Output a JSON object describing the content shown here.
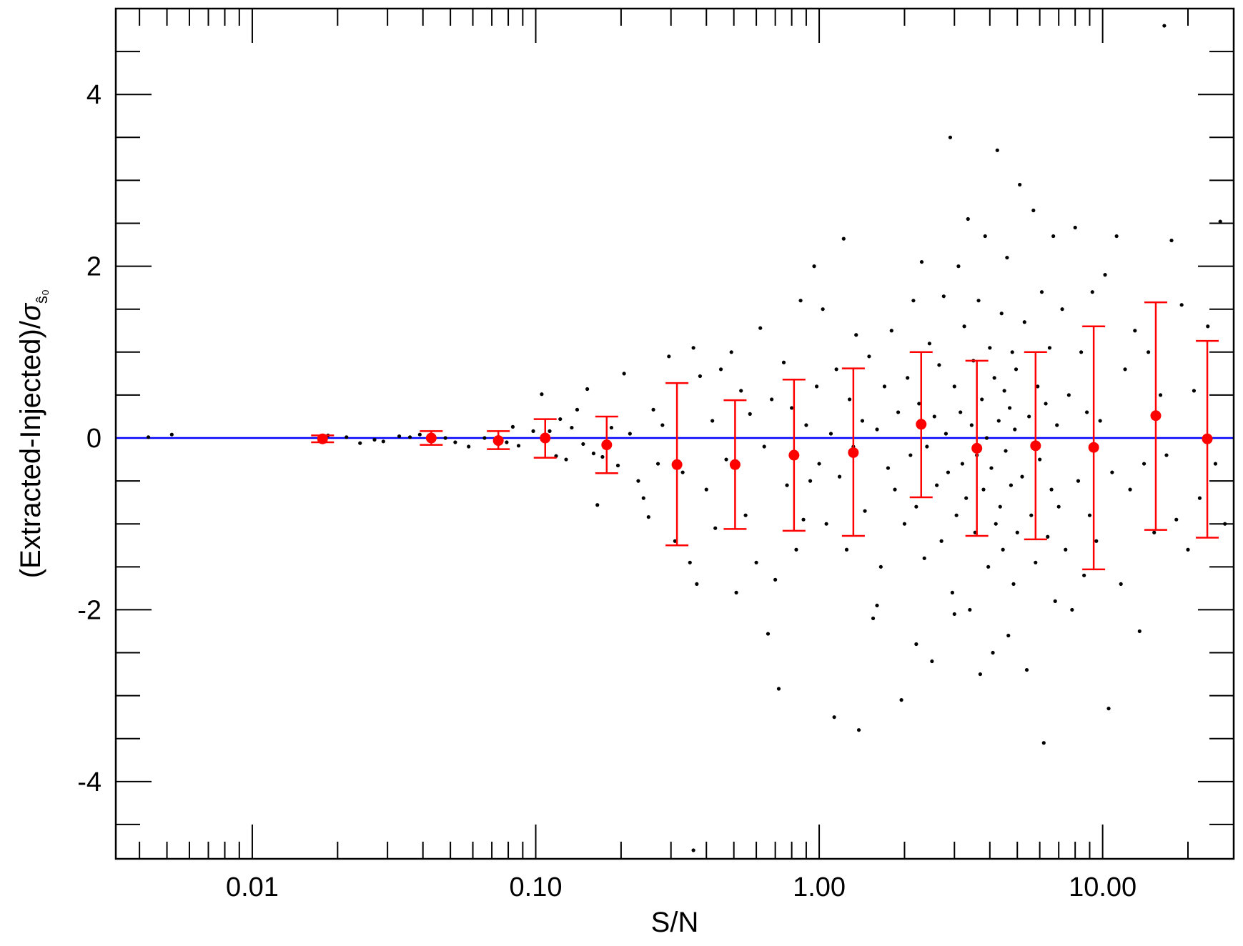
{
  "chart_data": {
    "type": "scatter",
    "xlabel": "S/N",
    "ylabel_main": "(Extracted-Injected)/",
    "ylabel_sigma": "σ",
    "ylabel_subscript": "ŝ₀",
    "x_scale": "log",
    "xlim": [
      0.0033,
      29
    ],
    "ylim": [
      -4.9,
      5.0
    ],
    "x_ticks": [
      {
        "value": 0.01,
        "label": "0.01"
      },
      {
        "value": 0.1,
        "label": "0.10"
      },
      {
        "value": 1,
        "label": "1.00"
      },
      {
        "value": 10,
        "label": "10.00"
      }
    ],
    "y_ticks": [
      {
        "value": 4,
        "label": "4"
      },
      {
        "value": 2,
        "label": "2"
      },
      {
        "value": 0,
        "label": "0"
      },
      {
        "value": -2,
        "label": "-2"
      },
      {
        "value": -4,
        "label": "-4"
      }
    ],
    "reference_line": {
      "y": 0,
      "color": "#0000ff"
    },
    "series": [
      {
        "kind": "scatter",
        "color": "#000000",
        "points": [
          [
            0.0043,
            0.01
          ],
          [
            0.0052,
            0.04
          ],
          [
            0.0175,
            0.0
          ],
          [
            0.0185,
            0.03
          ],
          [
            0.0215,
            0.01
          ],
          [
            0.024,
            -0.06
          ],
          [
            0.027,
            -0.02
          ],
          [
            0.029,
            -0.04
          ],
          [
            0.033,
            0.02
          ],
          [
            0.036,
            0.01
          ],
          [
            0.039,
            0.04
          ],
          [
            0.048,
            0.0
          ],
          [
            0.052,
            -0.05
          ],
          [
            0.058,
            -0.1
          ],
          [
            0.066,
            0.0
          ],
          [
            0.072,
            -0.03
          ],
          [
            0.079,
            -0.05
          ],
          [
            0.083,
            0.13
          ],
          [
            0.087,
            -0.09
          ],
          [
            0.098,
            0.08
          ],
          [
            0.105,
            0.51
          ],
          [
            0.112,
            0.08
          ],
          [
            0.118,
            -0.21
          ],
          [
            0.122,
            0.22
          ],
          [
            0.128,
            -0.25
          ],
          [
            0.134,
            0.12
          ],
          [
            0.14,
            0.33
          ],
          [
            0.147,
            -0.07
          ],
          [
            0.152,
            0.57
          ],
          [
            0.16,
            -0.18
          ],
          [
            0.165,
            -0.78
          ],
          [
            0.172,
            -0.22
          ],
          [
            0.185,
            0.12
          ],
          [
            0.195,
            -0.32
          ],
          [
            0.205,
            0.75
          ],
          [
            0.215,
            0.05
          ],
          [
            0.23,
            -0.5
          ],
          [
            0.24,
            -0.7
          ],
          [
            0.25,
            -0.92
          ],
          [
            0.26,
            0.33
          ],
          [
            0.27,
            -0.3
          ],
          [
            0.28,
            0.15
          ],
          [
            0.295,
            0.95
          ],
          [
            0.31,
            -1.2
          ],
          [
            0.33,
            -0.4
          ],
          [
            0.35,
            -1.45
          ],
          [
            0.36,
            1.05
          ],
          [
            0.37,
            -1.7
          ],
          [
            0.38,
            0.72
          ],
          [
            0.4,
            -0.6
          ],
          [
            0.42,
            0.2
          ],
          [
            0.43,
            -1.05
          ],
          [
            0.45,
            0.8
          ],
          [
            0.47,
            -0.25
          ],
          [
            0.49,
            1.0
          ],
          [
            0.51,
            -1.8
          ],
          [
            0.53,
            0.55
          ],
          [
            0.55,
            -0.9
          ],
          [
            0.57,
            0.28
          ],
          [
            0.6,
            -1.45
          ],
          [
            0.62,
            1.28
          ],
          [
            0.64,
            -0.1
          ],
          [
            0.66,
            -2.28
          ],
          [
            0.68,
            0.45
          ],
          [
            0.7,
            -1.65
          ],
          [
            0.72,
            -2.92
          ],
          [
            0.75,
            0.88
          ],
          [
            0.77,
            -0.55
          ],
          [
            0.8,
            0.35
          ],
          [
            0.83,
            -1.3
          ],
          [
            0.86,
            1.6
          ],
          [
            0.88,
            -0.95
          ],
          [
            0.9,
            0.15
          ],
          [
            0.93,
            -0.5
          ],
          [
            0.96,
            2.0
          ],
          [
            0.98,
            0.6
          ],
          [
            1.0,
            -0.3
          ],
          [
            1.03,
            1.5
          ],
          [
            1.06,
            -1.0
          ],
          [
            1.1,
            0.05
          ],
          [
            1.13,
            -3.25
          ],
          [
            1.15,
            0.8
          ],
          [
            1.18,
            -0.45
          ],
          [
            1.22,
            2.32
          ],
          [
            1.25,
            -1.3
          ],
          [
            1.28,
            0.45
          ],
          [
            1.32,
            -0.1
          ],
          [
            1.35,
            1.2
          ],
          [
            1.38,
            -3.4
          ],
          [
            1.42,
            0.2
          ],
          [
            1.45,
            -0.85
          ],
          [
            1.5,
            0.95
          ],
          [
            1.55,
            -2.1
          ],
          [
            1.6,
            0.1
          ],
          [
            1.65,
            -1.5
          ],
          [
            1.7,
            0.6
          ],
          [
            1.75,
            -0.35
          ],
          [
            1.8,
            1.25
          ],
          [
            1.85,
            -0.6
          ],
          [
            1.9,
            0.3
          ],
          [
            1.95,
            -3.05
          ],
          [
            2.0,
            -1.0
          ],
          [
            2.05,
            0.7
          ],
          [
            2.1,
            -0.2
          ],
          [
            2.15,
            1.6
          ],
          [
            2.2,
            -0.8
          ],
          [
            2.25,
            0.4
          ],
          [
            2.3,
            2.05
          ],
          [
            2.35,
            -1.4
          ],
          [
            2.4,
            -0.1
          ],
          [
            2.45,
            1.1
          ],
          [
            2.5,
            -2.6
          ],
          [
            2.55,
            0.25
          ],
          [
            2.6,
            -0.55
          ],
          [
            2.65,
            0.85
          ],
          [
            2.7,
            -1.2
          ],
          [
            2.75,
            1.65
          ],
          [
            2.8,
            0.05
          ],
          [
            2.85,
            -0.4
          ],
          [
            2.9,
            3.5
          ],
          [
            2.95,
            -1.8
          ],
          [
            3.0,
            0.6
          ],
          [
            3.05,
            -0.9
          ],
          [
            3.1,
            2.0
          ],
          [
            3.15,
            0.3
          ],
          [
            3.2,
            -0.3
          ],
          [
            3.25,
            1.3
          ],
          [
            3.3,
            -0.7
          ],
          [
            3.35,
            2.55
          ],
          [
            3.4,
            -2.0
          ],
          [
            3.45,
            0.15
          ],
          [
            3.5,
            0.9
          ],
          [
            3.55,
            -1.1
          ],
          [
            3.6,
            -0.2
          ],
          [
            3.65,
            1.6
          ],
          [
            3.7,
            -2.75
          ],
          [
            3.75,
            0.45
          ],
          [
            3.8,
            -0.6
          ],
          [
            3.85,
            2.35
          ],
          [
            3.9,
            0.0
          ],
          [
            3.95,
            -1.5
          ],
          [
            4.0,
            1.05
          ],
          [
            4.05,
            -0.35
          ],
          [
            4.1,
            -2.5
          ],
          [
            4.15,
            0.7
          ],
          [
            4.2,
            -1.0
          ],
          [
            4.25,
            3.35
          ],
          [
            4.3,
            0.2
          ],
          [
            4.35,
            -0.8
          ],
          [
            4.4,
            1.45
          ],
          [
            4.45,
            -1.3
          ],
          [
            4.5,
            0.55
          ],
          [
            4.55,
            -0.15
          ],
          [
            4.6,
            2.1
          ],
          [
            4.65,
            -2.3
          ],
          [
            4.7,
            0.35
          ],
          [
            4.75,
            -0.55
          ],
          [
            4.8,
            1.0
          ],
          [
            4.85,
            -1.7
          ],
          [
            4.9,
            0.1
          ],
          [
            4.95,
            0.8
          ],
          [
            5.0,
            -1.1
          ],
          [
            5.1,
            2.95
          ],
          [
            5.2,
            -0.45
          ],
          [
            5.3,
            1.35
          ],
          [
            5.4,
            -2.7
          ],
          [
            5.5,
            0.25
          ],
          [
            5.6,
            -0.9
          ],
          [
            5.7,
            2.65
          ],
          [
            5.8,
            -1.45
          ],
          [
            5.9,
            0.6
          ],
          [
            6.0,
            -0.25
          ],
          [
            6.1,
            1.7
          ],
          [
            6.2,
            -3.55
          ],
          [
            6.3,
            0.4
          ],
          [
            6.4,
            -1.15
          ],
          [
            6.5,
            1.05
          ],
          [
            6.6,
            -0.6
          ],
          [
            6.7,
            2.35
          ],
          [
            6.8,
            -1.9
          ],
          [
            6.9,
            0.15
          ],
          [
            7.0,
            -0.8
          ],
          [
            7.2,
            1.5
          ],
          [
            7.4,
            -1.3
          ],
          [
            7.6,
            0.5
          ],
          [
            7.8,
            -2.0
          ],
          [
            8.0,
            2.45
          ],
          [
            8.2,
            -0.5
          ],
          [
            8.4,
            1.0
          ],
          [
            8.6,
            -1.6
          ],
          [
            8.8,
            0.3
          ],
          [
            9.0,
            -0.9
          ],
          [
            9.2,
            1.7
          ],
          [
            9.5,
            -1.2
          ],
          [
            9.8,
            0.2
          ],
          [
            10.2,
            1.9
          ],
          [
            10.5,
            -3.15
          ],
          [
            10.8,
            -0.4
          ],
          [
            11.2,
            2.35
          ],
          [
            11.6,
            -1.7
          ],
          [
            12.0,
            0.8
          ],
          [
            12.5,
            -0.6
          ],
          [
            13.0,
            1.25
          ],
          [
            13.5,
            -2.25
          ],
          [
            14.0,
            -0.3
          ],
          [
            14.5,
            1.0
          ],
          [
            15.2,
            -1.1
          ],
          [
            16.0,
            0.5
          ],
          [
            16.8,
            -0.2
          ],
          [
            17.5,
            2.3
          ],
          [
            18.2,
            -0.95
          ],
          [
            19.0,
            1.55
          ],
          [
            20.0,
            -1.3
          ],
          [
            21.0,
            0.55
          ],
          [
            22.0,
            -0.7
          ],
          [
            23.5,
            1.3
          ],
          [
            25.0,
            -0.3
          ],
          [
            26.0,
            2.52
          ],
          [
            27.0,
            -1.0
          ],
          [
            16.5,
            4.8
          ],
          [
            0.36,
            -4.8
          ],
          [
            1.6,
            -1.95
          ],
          [
            2.2,
            -2.4
          ],
          [
            3.0,
            -2.05
          ]
        ]
      },
      {
        "kind": "errorbar",
        "color": "#ff0000",
        "points": [
          {
            "x": 0.0177,
            "y": -0.01,
            "lo": -0.05,
            "hi": 0.03
          },
          {
            "x": 0.0428,
            "y": 0.0,
            "lo": -0.08,
            "hi": 0.08
          },
          {
            "x": 0.0738,
            "y": -0.03,
            "lo": -0.13,
            "hi": 0.08
          },
          {
            "x": 0.108,
            "y": 0.0,
            "lo": -0.23,
            "hi": 0.22
          },
          {
            "x": 0.178,
            "y": -0.08,
            "lo": -0.41,
            "hi": 0.25
          },
          {
            "x": 0.315,
            "y": -0.31,
            "lo": -1.25,
            "hi": 0.64
          },
          {
            "x": 0.505,
            "y": -0.31,
            "lo": -1.06,
            "hi": 0.44
          },
          {
            "x": 0.815,
            "y": -0.2,
            "lo": -1.08,
            "hi": 0.68
          },
          {
            "x": 1.32,
            "y": -0.17,
            "lo": -1.14,
            "hi": 0.81
          },
          {
            "x": 2.29,
            "y": 0.16,
            "lo": -0.69,
            "hi": 1.0
          },
          {
            "x": 3.6,
            "y": -0.12,
            "lo": -1.14,
            "hi": 0.9
          },
          {
            "x": 5.8,
            "y": -0.09,
            "lo": -1.18,
            "hi": 1.0
          },
          {
            "x": 9.3,
            "y": -0.11,
            "lo": -1.53,
            "hi": 1.3
          },
          {
            "x": 15.4,
            "y": 0.26,
            "lo": -1.07,
            "hi": 1.58
          },
          {
            "x": 23.4,
            "y": -0.01,
            "lo": -1.16,
            "hi": 1.13
          }
        ]
      }
    ]
  }
}
